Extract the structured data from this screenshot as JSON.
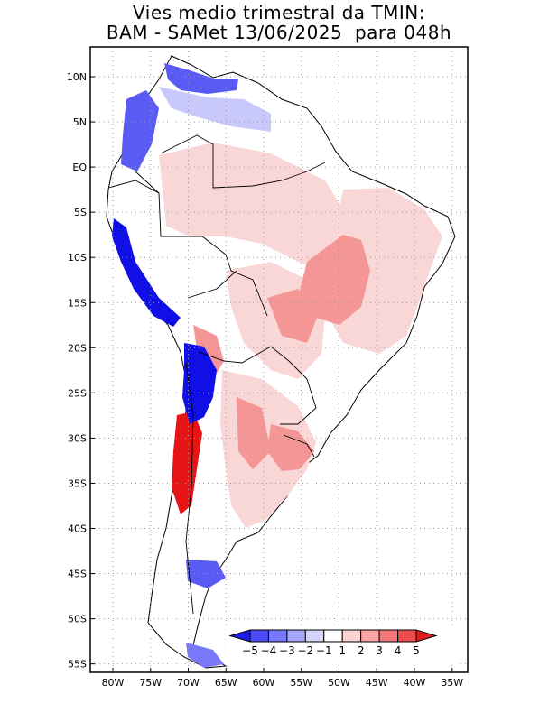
{
  "title": {
    "line1": "Vies medio trimestral da TMIN:",
    "line2": "BAM - SAMet 13/06/2025  para 048h"
  },
  "map": {
    "lat_labels": [
      "10N",
      "5N",
      "EQ",
      "5S",
      "10S",
      "15S",
      "20S",
      "25S",
      "30S",
      "35S",
      "40S",
      "45S",
      "50S",
      "55S"
    ],
    "lon_labels": [
      "80W",
      "75W",
      "70W",
      "65W",
      "60W",
      "55W",
      "50W",
      "45W",
      "40W",
      "35W"
    ]
  },
  "legend": {
    "labels": [
      "-5",
      "-4",
      "-3",
      "-2",
      "-1",
      "1",
      "2",
      "3",
      "4",
      "5"
    ],
    "colors": [
      "#1e1ef0",
      "#4b4bf5",
      "#7878fa",
      "#a5a5fa",
      "#d2d2fa",
      "#ffffff",
      "#fad2d2",
      "#faa5a5",
      "#f57878",
      "#f04b4b",
      "#e11e1e"
    ]
  },
  "colors": {
    "strong_blue": "#0f0fe6",
    "mid_blue": "#5a5af5",
    "light_blue": "#c8c8fa",
    "light_red": "#fad7d7",
    "mid_red": "#f59696",
    "strong_red": "#e61414"
  }
}
